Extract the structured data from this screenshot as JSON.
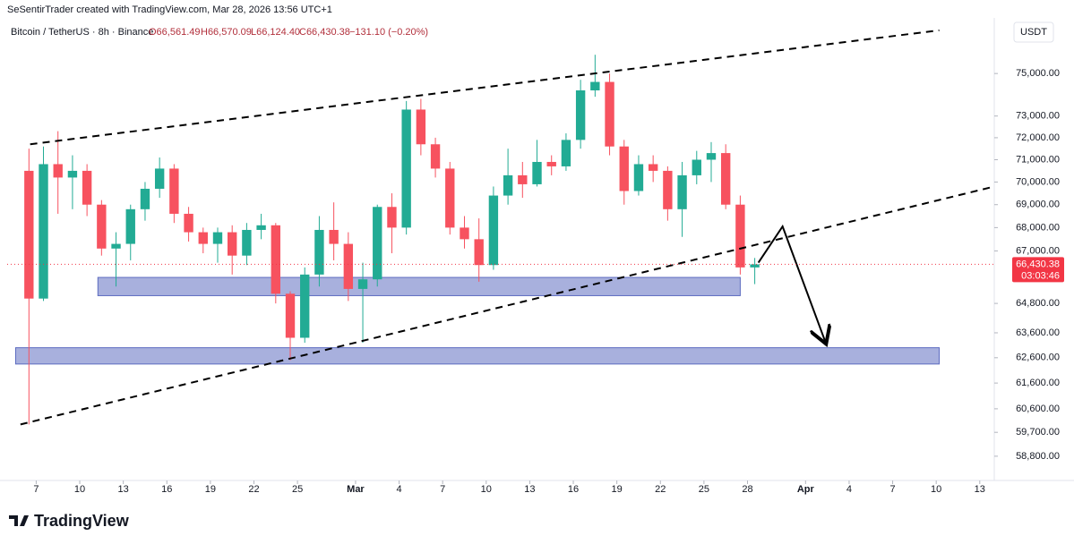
{
  "header": {
    "credit": "SeSentirTrader created with TradingView.com, Mar 28, 2026 13:56 UTC+1",
    "symbol": "Bitcoin / TetherUS · 8h · Binance",
    "open": "O66,561.49",
    "high": "H66,570.09",
    "low": "L66,124.40",
    "close": "C66,430.38",
    "change": "−131.10 (−0.20%)",
    "currency": "USDT",
    "logo": "TradingView"
  },
  "chart_data": {
    "type": "candlestick",
    "log_scale": true,
    "grid": false,
    "up_color": "#22ab94",
    "down_color": "#f7525f",
    "xlim": [
      "2026-02-05",
      "2026-04-14"
    ],
    "ylim": [
      57900,
      77700
    ],
    "xticks": [
      {
        "value": "2026-02-07",
        "label": "7"
      },
      {
        "value": "2026-02-10",
        "label": "10"
      },
      {
        "value": "2026-02-13",
        "label": "13"
      },
      {
        "value": "2026-02-16",
        "label": "16"
      },
      {
        "value": "2026-02-19",
        "label": "19"
      },
      {
        "value": "2026-02-22",
        "label": "22"
      },
      {
        "value": "2026-02-25",
        "label": "25"
      },
      {
        "value": "2026-03-01",
        "label": "Mar"
      },
      {
        "value": "2026-03-04",
        "label": "4"
      },
      {
        "value": "2026-03-07",
        "label": "7"
      },
      {
        "value": "2026-03-10",
        "label": "10"
      },
      {
        "value": "2026-03-13",
        "label": "13"
      },
      {
        "value": "2026-03-16",
        "label": "16"
      },
      {
        "value": "2026-03-19",
        "label": "19"
      },
      {
        "value": "2026-03-22",
        "label": "22"
      },
      {
        "value": "2026-03-25",
        "label": "25"
      },
      {
        "value": "2026-03-28",
        "label": "28"
      },
      {
        "value": "2026-04-01",
        "label": "Apr"
      },
      {
        "value": "2026-04-04",
        "label": "4"
      },
      {
        "value": "2026-04-07",
        "label": "7"
      },
      {
        "value": "2026-04-10",
        "label": "10"
      },
      {
        "value": "2026-04-13",
        "label": "13"
      }
    ],
    "yticks": [
      {
        "value": 75000,
        "label": "75,000.00"
      },
      {
        "value": 73000,
        "label": "73,000.00"
      },
      {
        "value": 72000,
        "label": "72,000.00"
      },
      {
        "value": 71000,
        "label": "71,000.00"
      },
      {
        "value": 70000,
        "label": "70,000.00"
      },
      {
        "value": 69000,
        "label": "69,000.00"
      },
      {
        "value": 68000,
        "label": "68,000.00"
      },
      {
        "value": 67000,
        "label": "67,000.00"
      },
      {
        "value": 64800,
        "label": "64,800.00"
      },
      {
        "value": 63600,
        "label": "63,600.00"
      },
      {
        "value": 62600,
        "label": "62,600.00"
      },
      {
        "value": 61600,
        "label": "61,600.00"
      },
      {
        "value": 60600,
        "label": "60,600.00"
      },
      {
        "value": 59700,
        "label": "59,700.00"
      },
      {
        "value": 58800,
        "label": "58,800.00"
      }
    ],
    "last_price": {
      "value": 66430.38,
      "label": "66,430.38",
      "countdown": "03:03:46",
      "color": "#f23645"
    },
    "x": [
      "2026-02-06",
      "2026-02-07",
      "2026-02-08",
      "2026-02-09",
      "2026-02-10",
      "2026-02-11",
      "2026-02-12",
      "2026-02-13",
      "2026-02-14",
      "2026-02-15",
      "2026-02-16",
      "2026-02-17",
      "2026-02-18",
      "2026-02-19",
      "2026-02-20",
      "2026-02-21",
      "2026-02-22",
      "2026-02-23",
      "2026-02-24",
      "2026-02-25",
      "2026-02-26",
      "2026-02-27",
      "2026-02-28",
      "2026-03-01",
      "2026-03-02",
      "2026-03-03",
      "2026-03-04",
      "2026-03-05",
      "2026-03-06",
      "2026-03-07",
      "2026-03-08",
      "2026-03-09",
      "2026-03-10",
      "2026-03-11",
      "2026-03-12",
      "2026-03-13",
      "2026-03-14",
      "2026-03-15",
      "2026-03-16",
      "2026-03-17",
      "2026-03-18",
      "2026-03-19",
      "2026-03-20",
      "2026-03-21",
      "2026-03-22",
      "2026-03-23",
      "2026-03-24",
      "2026-03-25",
      "2026-03-26",
      "2026-03-27",
      "2026-03-28"
    ],
    "open": [
      70500,
      65000,
      70800,
      70200,
      70500,
      69000,
      67100,
      67300,
      68800,
      69700,
      70600,
      68600,
      67800,
      67300,
      67800,
      66800,
      67900,
      68100,
      65200,
      63400,
      66000,
      67900,
      67300,
      65400,
      65800,
      68900,
      68000,
      73300,
      71700,
      70600,
      68000,
      67500,
      66400,
      69400,
      70300,
      69900,
      70900,
      70700,
      71900,
      74200,
      74600,
      71600,
      69600,
      70800,
      70500,
      68800,
      70300,
      71000,
      71300,
      69000,
      66300
    ],
    "high": [
      71500,
      71600,
      72300,
      71200,
      70800,
      69200,
      67800,
      69000,
      70000,
      71100,
      70800,
      68900,
      68000,
      68000,
      68100,
      68200,
      68600,
      68200,
      65300,
      66300,
      68500,
      69100,
      67800,
      66500,
      69000,
      69500,
      73700,
      73800,
      72000,
      70900,
      68500,
      68400,
      69800,
      71500,
      70900,
      71900,
      71200,
      72200,
      74700,
      75900,
      75000,
      71900,
      71200,
      71200,
      70700,
      70900,
      71400,
      71800,
      71700,
      69400,
      66700
    ],
    "low": [
      60000,
      64900,
      68600,
      68800,
      68500,
      66800,
      65500,
      66600,
      68300,
      69300,
      68200,
      67400,
      66900,
      66500,
      66000,
      66400,
      67500,
      64800,
      62500,
      63200,
      65500,
      66600,
      64900,
      63200,
      65500,
      66900,
      67700,
      71200,
      70200,
      67700,
      67100,
      65700,
      66200,
      69000,
      69300,
      69800,
      70300,
      70500,
      71500,
      73900,
      71200,
      69000,
      69400,
      70000,
      68300,
      67600,
      69900,
      70000,
      68800,
      66000,
      65600
    ],
    "close": [
      65000,
      70800,
      70200,
      70500,
      69000,
      67100,
      67300,
      68800,
      69700,
      70600,
      68600,
      67800,
      67300,
      67800,
      66800,
      67900,
      68100,
      65200,
      63400,
      66000,
      67900,
      67300,
      65400,
      65800,
      68900,
      68000,
      73300,
      71700,
      70600,
      68000,
      67500,
      66400,
      69400,
      70300,
      69900,
      70900,
      70700,
      71900,
      74200,
      74600,
      71600,
      69600,
      70800,
      70500,
      68800,
      70300,
      71000,
      71300,
      69000,
      66300,
      66430
    ],
    "zones": [
      {
        "x": [
          "2026-02-11T06:00",
          "2026-03-27T12:00"
        ],
        "y": [
          65120,
          65880
        ],
        "color": "#7986cb"
      },
      {
        "x": [
          "2026-02-05T14:00",
          "2026-04-10T05:00"
        ],
        "y": [
          62350,
          63000
        ],
        "color": "#7986cb"
      }
    ],
    "lines": [
      {
        "x": [
          "2026-02-06T14:00",
          "2026-04-10T05:00"
        ],
        "y": [
          71700,
          77090
        ],
        "style": "dashed"
      },
      {
        "x": [
          "2026-02-05T22:00",
          "2026-04-14"
        ],
        "y": [
          60000,
          69800
        ],
        "style": "dashed"
      },
      {
        "x": [
          "2026-03-28T18:00",
          "2026-03-30T10:00",
          "2026-04-02T10:00"
        ],
        "y": [
          66500,
          68050,
          63150
        ],
        "style": "arrow"
      }
    ]
  }
}
